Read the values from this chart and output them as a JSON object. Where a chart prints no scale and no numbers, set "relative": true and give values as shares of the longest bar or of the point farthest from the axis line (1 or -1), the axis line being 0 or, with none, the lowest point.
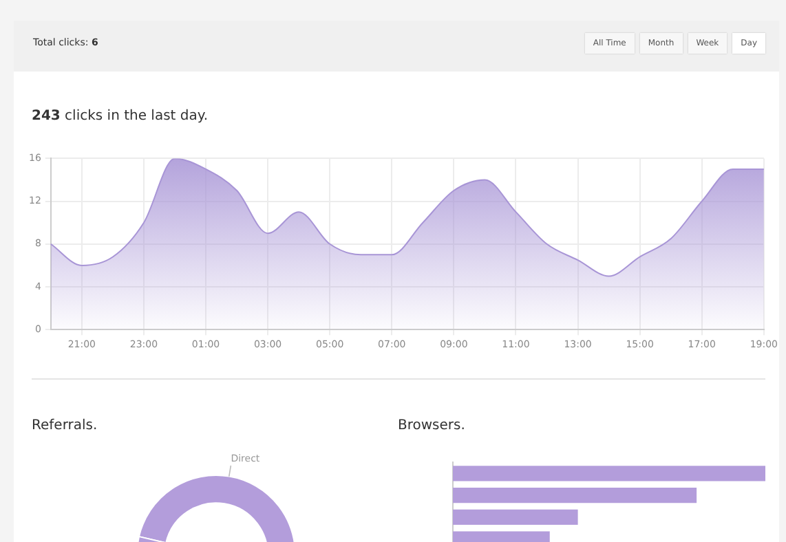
{
  "chart_data": [
    {
      "type": "area",
      "title": "243 clicks in the last day.",
      "annotations": [
        "Total clicks: 6",
        "All Time",
        "Month",
        "Week",
        "Day"
      ],
      "categories": [
        null,
        "21:00",
        null,
        "23:00",
        null,
        "01:00",
        null,
        "03:00",
        null,
        "05:00",
        null,
        "07:00",
        null,
        "09:00",
        null,
        "11:00",
        null,
        "13:00",
        null,
        "15:00",
        null,
        "17:00",
        null,
        "19:00"
      ],
      "series": [
        {
          "color": "#a895d6",
          "values": [
            8,
            6,
            6.8,
            10,
            16,
            15,
            13,
            9,
            11,
            8,
            7,
            7,
            10,
            13,
            14,
            11,
            8,
            6.5,
            5,
            6.8,
            8.5,
            12,
            15,
            15
          ]
        }
      ],
      "ylim": [
        0,
        16
      ],
      "yticks": [
        0,
        4,
        8,
        12,
        16
      ],
      "grid": true,
      "legend": false
    },
    {
      "type": "donut",
      "title": "Referrals.",
      "categories": [
        "Direct",
        null
      ],
      "values": [
        48,
        52
      ],
      "colors": [
        "#b39ddb",
        "#b39ddb"
      ]
    },
    {
      "type": "bar",
      "title": "Browsers.",
      "orientation": "horizontal",
      "relative": true,
      "categories": [
        null,
        null,
        null,
        null
      ],
      "values": [
        1,
        0.78,
        0.4,
        0.31
      ],
      "color": "#b39ddb"
    }
  ]
}
